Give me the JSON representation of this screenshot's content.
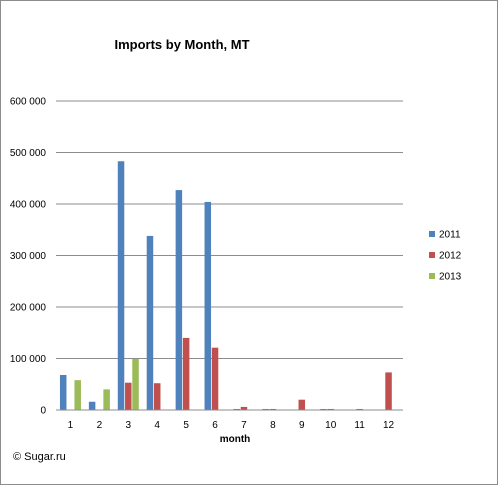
{
  "chart_data": {
    "type": "bar",
    "title": "Imports by Month, MT",
    "xlabel": "month",
    "ylabel": "",
    "ylim": [
      0,
      600000
    ],
    "yticks": [
      0,
      100000,
      200000,
      300000,
      400000,
      500000,
      600000
    ],
    "ytick_labels": [
      "0",
      "100 000",
      "200 000",
      "300 000",
      "400 000",
      "500 000",
      "600 000"
    ],
    "categories": [
      "1",
      "2",
      "3",
      "4",
      "5",
      "6",
      "7",
      "8",
      "9",
      "10",
      "11",
      "12"
    ],
    "series": [
      {
        "name": "2011",
        "color": "#4f81bd",
        "values": [
          68000,
          16000,
          483000,
          338000,
          427000,
          404000,
          2000,
          2000,
          0,
          2000,
          0,
          0
        ]
      },
      {
        "name": "2012",
        "color": "#c0504d",
        "values": [
          0,
          0,
          53000,
          52000,
          140000,
          121000,
          6000,
          2000,
          20000,
          2000,
          2000,
          73000
        ]
      },
      {
        "name": "2013",
        "color": "#9bbb59",
        "values": [
          58000,
          40000,
          99000,
          0,
          0,
          0,
          0,
          0,
          0,
          0,
          0,
          0
        ]
      }
    ],
    "grid": true,
    "legend": "right"
  },
  "copyright": "© Sugar.ru"
}
